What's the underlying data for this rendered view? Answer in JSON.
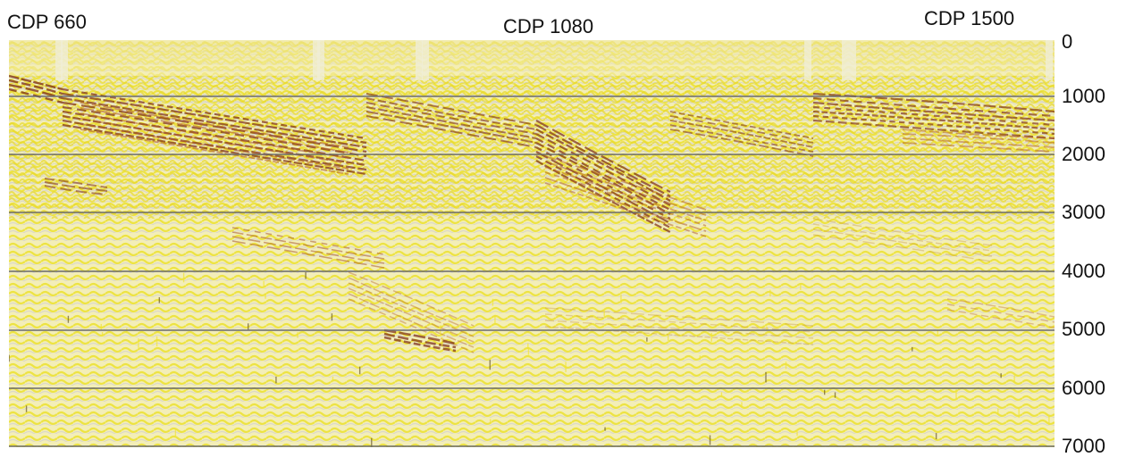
{
  "cdp_labels": {
    "left": "CDP 660",
    "middle": "CDP 1080",
    "right": "CDP 1500"
  },
  "depth_axis": {
    "ticks": [
      "0",
      "1000",
      "2000",
      "3000",
      "4000",
      "5000",
      "6000",
      "7000"
    ]
  },
  "colors": {
    "background": "#f4eca6",
    "yellow_wiggle": "#f2e434",
    "dark_reflector": "#7a2a12",
    "gray_gaps": "#cfcfc8",
    "gridline": "#6a6a6a"
  }
}
